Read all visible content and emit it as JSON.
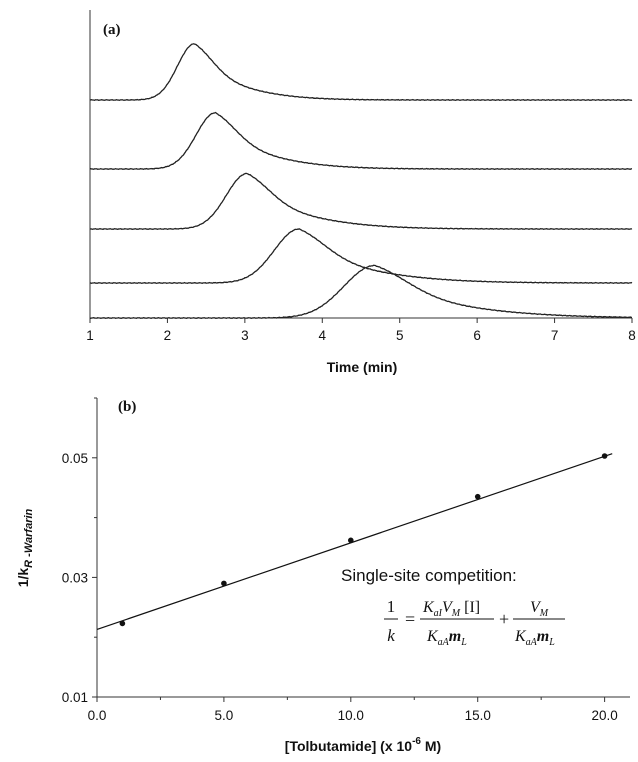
{
  "chart_data": [
    {
      "panel": "(a)",
      "type": "line",
      "xlabel": "Time (min)",
      "ylabel": "",
      "xlim": [
        1,
        8
      ],
      "xticks": [
        "1",
        "2",
        "3",
        "4",
        "5",
        "6",
        "7",
        "8"
      ],
      "grid": false,
      "series": [
        {
          "peak_time": 2.35,
          "peak_height": 0.75,
          "width_left": 0.22,
          "tail": 0.75
        },
        {
          "peak_time": 2.62,
          "peak_height": 0.75,
          "width_left": 0.25,
          "tail": 0.85
        },
        {
          "peak_time": 3.03,
          "peak_height": 0.74,
          "width_left": 0.27,
          "tail": 0.95
        },
        {
          "peak_time": 3.7,
          "peak_height": 0.72,
          "width_left": 0.32,
          "tail": 1.1
        },
        {
          "peak_time": 4.68,
          "peak_height": 0.7,
          "width_left": 0.4,
          "tail": 1.3
        }
      ]
    },
    {
      "panel": "(b)",
      "type": "scatter",
      "xlabel": "[Tolbutamide] (x 10-6 M)",
      "xlabel_parts": {
        "main": "[Tolbutamide] (x 10",
        "sup": "-6",
        "end": " M)"
      },
      "ylabel": "1/kR-Warfarin",
      "ylabel_parts": {
        "main": "1/k",
        "sub": "R -Warfarin"
      },
      "xlim": [
        0,
        21
      ],
      "ylim": [
        0.01,
        0.06
      ],
      "xticks": [
        "0.0",
        "5.0",
        "10.0",
        "15.0",
        "20.0"
      ],
      "yticks": [
        "0.01",
        "0.03",
        "0.05"
      ],
      "grid": false,
      "points": [
        {
          "x": 1.0,
          "y": 0.0223
        },
        {
          "x": 5.0,
          "y": 0.029
        },
        {
          "x": 10.0,
          "y": 0.0362
        },
        {
          "x": 15.0,
          "y": 0.0435
        },
        {
          "x": 20.0,
          "y": 0.0503
        }
      ],
      "fit_line": {
        "slope": 0.001448,
        "intercept": 0.0213
      },
      "annotation": "Single-site competition:"
    }
  ]
}
